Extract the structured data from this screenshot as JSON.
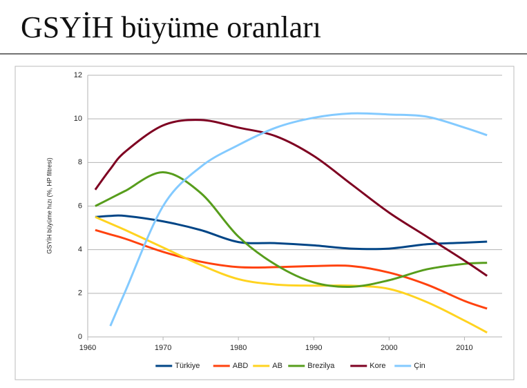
{
  "chart_data": {
    "type": "line",
    "title": "GSYİH büyüme oranları",
    "y_label": "GSYİH büyüme hızı (%, HP filtresi)",
    "x": [
      1961,
      1963,
      1965,
      1970,
      1975,
      1980,
      1985,
      1990,
      1995,
      2000,
      2005,
      2010,
      2013
    ],
    "series": [
      {
        "name": "Türkiye",
        "color": "#004586",
        "values": [
          5.5,
          5.55,
          5.55,
          5.3,
          4.9,
          4.35,
          4.3,
          4.2,
          4.05,
          4.05,
          4.25,
          4.32,
          4.37
        ]
      },
      {
        "name": "ABD",
        "color": "#ff420e",
        "values": [
          4.9,
          4.7,
          4.5,
          3.9,
          3.45,
          3.2,
          3.2,
          3.25,
          3.25,
          2.95,
          2.4,
          1.65,
          1.3
        ]
      },
      {
        "name": "AB",
        "color": "#ffd320",
        "values": [
          5.5,
          5.2,
          4.9,
          4.1,
          3.3,
          2.65,
          2.4,
          2.35,
          2.35,
          2.2,
          1.6,
          0.75,
          0.2
        ]
      },
      {
        "name": "Brezilya",
        "color": "#579d1c",
        "values": [
          6.0,
          6.35,
          6.7,
          7.55,
          6.6,
          4.6,
          3.3,
          2.5,
          2.3,
          2.6,
          3.1,
          3.35,
          3.4
        ]
      },
      {
        "name": "Kore",
        "color": "#7e0021",
        "values": [
          6.75,
          7.7,
          8.5,
          9.7,
          9.95,
          9.6,
          9.2,
          8.3,
          7.0,
          5.7,
          4.6,
          3.5,
          2.8
        ]
      },
      {
        "name": "Çin",
        "color": "#83caff",
        "values": [
          null,
          0.5,
          2.1,
          6.0,
          7.8,
          8.8,
          9.6,
          10.05,
          10.25,
          10.2,
          10.1,
          9.6,
          9.25
        ]
      }
    ],
    "xlim": [
      1960,
      2015
    ],
    "xticks": [
      1960,
      1970,
      1980,
      1990,
      2000,
      2010
    ],
    "ylim": [
      0,
      12
    ],
    "yticks": [
      0,
      2,
      4,
      6,
      8,
      10,
      12
    ],
    "grid": true,
    "legend": "bottom"
  }
}
